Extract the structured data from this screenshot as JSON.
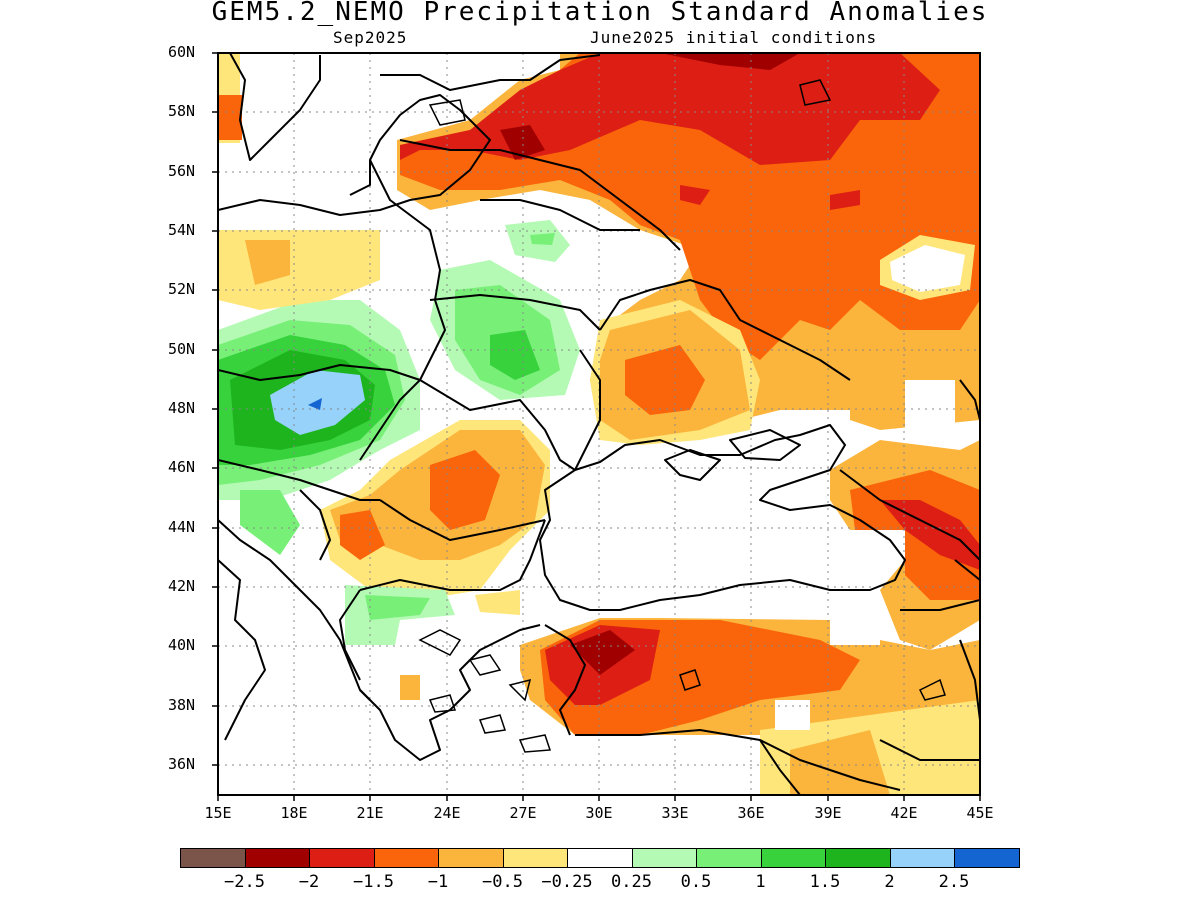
{
  "title": "GEM5.2_NEMO Precipitation Standard Anomalies",
  "subtitle_left": "Sep2025",
  "subtitle_right": "June2025 initial conditions",
  "lat_labels": [
    "60N",
    "58N",
    "56N",
    "54N",
    "52N",
    "50N",
    "48N",
    "46N",
    "44N",
    "42N",
    "40N",
    "38N",
    "36N"
  ],
  "lon_labels": [
    "15E",
    "18E",
    "21E",
    "24E",
    "27E",
    "30E",
    "33E",
    "36E",
    "39E",
    "42E",
    "45E"
  ],
  "colorbar": {
    "colors": [
      "#7b5549",
      "#a00000",
      "#dc1e14",
      "#fa640a",
      "#fbb43c",
      "#ffe67a",
      "#ffffff",
      "#b4fab4",
      "#78f078",
      "#37d23c",
      "#1eb41e",
      "#96d2fa",
      "#1464d2"
    ],
    "labels": [
      "-2.5",
      "-2",
      "-1.5",
      "-1",
      "-0.5",
      "-0.25",
      "0.25",
      "0.5",
      "1",
      "1.5",
      "2",
      "2.5"
    ]
  },
  "colors": {
    "dark_red": "#a00000",
    "red": "#dc1e14",
    "orange": "#fa640a",
    "light_orange": "#fbb43c",
    "yellow": "#ffe67a",
    "light_green": "#b4fab4",
    "green": "#78f078",
    "mid_green": "#37d23c",
    "dark_green": "#1eb41e",
    "light_blue": "#96d2fa",
    "blue": "#1464d2"
  }
}
